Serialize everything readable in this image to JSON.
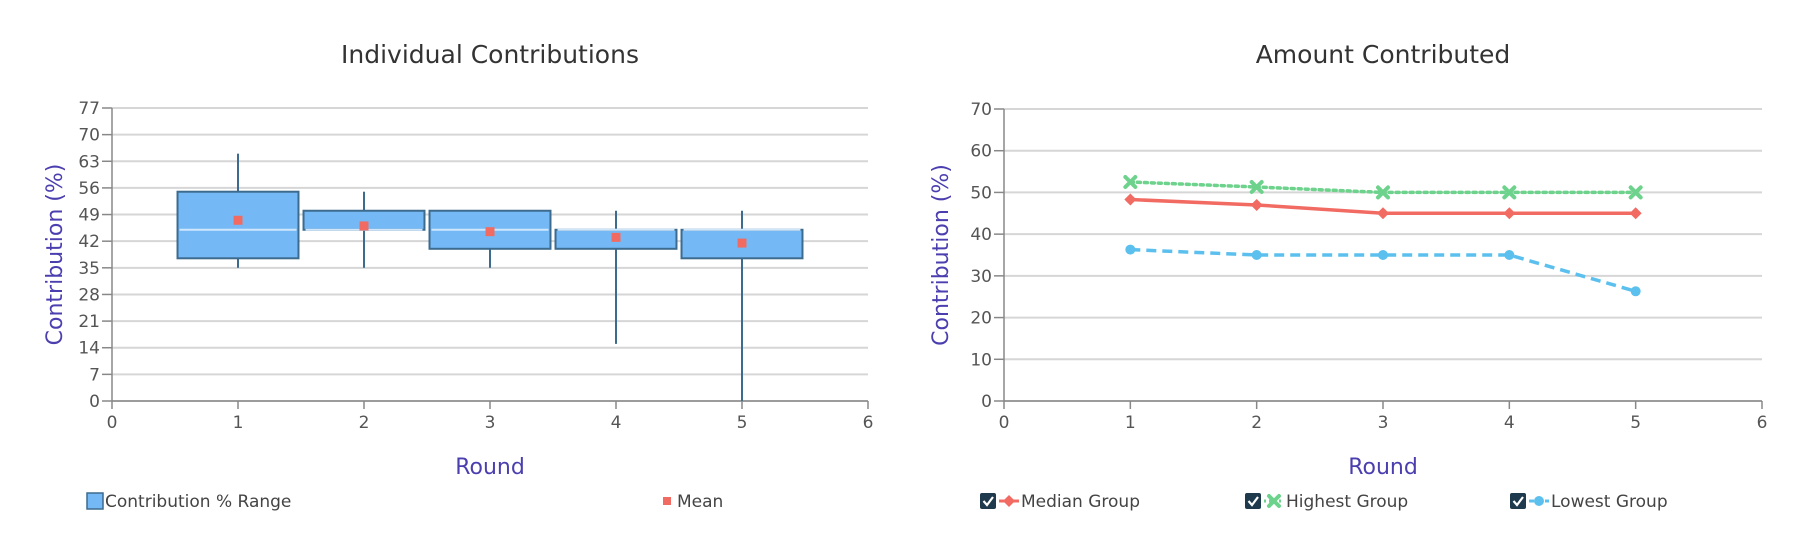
{
  "chart_data": [
    {
      "type": "box",
      "title": "Individual Contributions",
      "xlabel": "Round",
      "ylabel": "Contribution (%)",
      "xlim": [
        0,
        6
      ],
      "ylim": [
        0,
        77
      ],
      "xticks": [
        0,
        1,
        2,
        3,
        4,
        5,
        6
      ],
      "yticks": [
        0,
        7,
        14,
        21,
        28,
        35,
        42,
        49,
        56,
        63,
        70,
        77
      ],
      "grid": true,
      "legend_position": "bottom",
      "x": [
        1,
        2,
        3,
        4,
        5
      ],
      "boxes": [
        {
          "x": 1,
          "min": 35,
          "q1": 37.5,
          "median": 45,
          "q3": 55,
          "max": 65,
          "mean": 47.5
        },
        {
          "x": 2,
          "min": 35,
          "q1": 45,
          "median": 45,
          "q3": 50,
          "max": 55,
          "mean": 46
        },
        {
          "x": 3,
          "min": 35,
          "q1": 40,
          "median": 45,
          "q3": 50,
          "max": 50,
          "mean": 44.5
        },
        {
          "x": 4,
          "min": 15,
          "q1": 40,
          "median": 45,
          "q3": 45,
          "max": 50,
          "mean": 43
        },
        {
          "x": 5,
          "min": 0,
          "q1": 37.5,
          "median": 45,
          "q3": 45,
          "max": 50,
          "mean": 41.5
        }
      ],
      "legend": [
        {
          "label": "Contribution % Range",
          "color": "#74b9f5"
        },
        {
          "label": "Mean",
          "color": "#f26b63"
        }
      ],
      "colors": {
        "box_fill": "#74b9f5",
        "box_stroke": "#3d6b8e",
        "mean": "#f26b63",
        "median_line": "#cfe6fb"
      }
    },
    {
      "type": "line",
      "title": "Amount Contributed",
      "xlabel": "Round",
      "ylabel": "Contribution (%)",
      "xlim": [
        0,
        6
      ],
      "ylim": [
        0,
        70
      ],
      "xticks": [
        0,
        1,
        2,
        3,
        4,
        5,
        6
      ],
      "yticks": [
        0,
        10,
        20,
        30,
        40,
        50,
        60,
        70
      ],
      "grid": true,
      "legend_position": "bottom",
      "x": [
        1,
        2,
        3,
        4,
        5
      ],
      "series": [
        {
          "name": "Median Group",
          "values": [
            48.3,
            47,
            45,
            45,
            45
          ],
          "color": "#f26b63",
          "dash": "solid",
          "marker": "diamond",
          "checked": true
        },
        {
          "name": "Highest Group",
          "values": [
            52.5,
            51.3,
            50,
            50,
            50
          ],
          "color": "#6dd28c",
          "dash": "dotted",
          "marker": "x",
          "checked": true
        },
        {
          "name": "Lowest Group",
          "values": [
            36.3,
            35,
            35,
            35,
            26.3
          ],
          "color": "#5cc0ee",
          "dash": "dashed",
          "marker": "circle",
          "checked": true
        }
      ],
      "colors": {
        "checkbox": "#1e3a4c"
      }
    }
  ]
}
